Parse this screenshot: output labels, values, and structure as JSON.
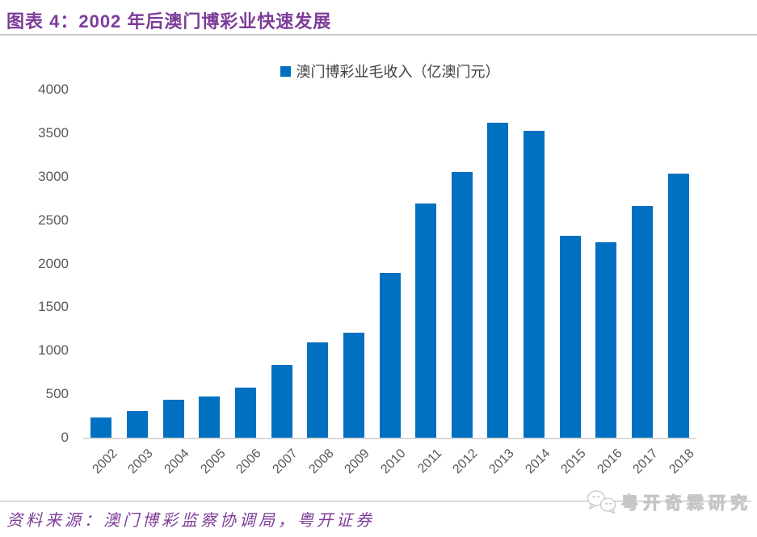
{
  "header": {
    "title": "图表 4：2002 年后澳门博彩业快速发展"
  },
  "legend": {
    "label": "澳门博彩业毛收入（亿澳门元）"
  },
  "chart_data": {
    "type": "bar",
    "title": "图表 4：2002 年后澳门博彩业快速发展",
    "series_name": "澳门博彩业毛收入（亿澳门元）",
    "categories": [
      "2002",
      "2003",
      "2004",
      "2005",
      "2006",
      "2007",
      "2008",
      "2009",
      "2010",
      "2011",
      "2012",
      "2013",
      "2014",
      "2015",
      "2016",
      "2017",
      "2018"
    ],
    "values": [
      235,
      303,
      435,
      471,
      575,
      838,
      1098,
      1204,
      1896,
      2691,
      3052,
      3619,
      3527,
      2318,
      2242,
      2661,
      3039
    ],
    "xlabel": "",
    "ylabel": "",
    "ylim": [
      0,
      4000
    ],
    "yticks": [
      0,
      500,
      1000,
      1500,
      2000,
      2500,
      3000,
      3500,
      4000
    ],
    "bar_color": "#0070C0",
    "grid": false,
    "legend_position": "top-center"
  },
  "footer": {
    "source": "资料来源：澳门博彩监察协调局，粤开证券",
    "watermark": "粤开奇霖研究",
    "watermark_icon": "wechat-icon"
  },
  "colors": {
    "accent_purple": "#7D3C98",
    "bar_blue": "#0070C0",
    "axis_text": "#595959",
    "axis_line": "#D9D9D9",
    "divider": "#C8C8C8"
  }
}
